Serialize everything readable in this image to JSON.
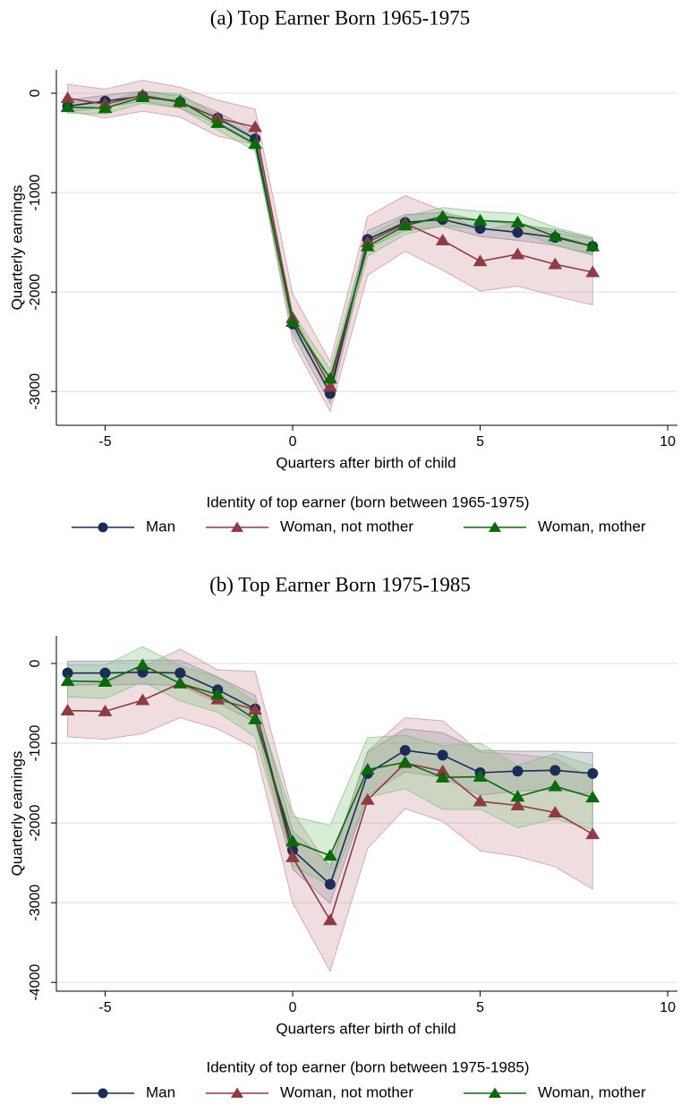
{
  "chart_data": [
    {
      "type": "line",
      "title": "(a) Top Earner Born 1965-1975",
      "xlabel": "Quarters after birth of child",
      "ylabel": "Quarterly earnings",
      "legend_title": "Identity of top earner (born between 1965-1975)",
      "grid": true,
      "xlim": [
        -6.3,
        10.26
      ],
      "xticks": [
        -5,
        0,
        5,
        10
      ],
      "ylim": [
        -3340,
        235
      ],
      "yticks": [
        0,
        -1000,
        -2000,
        -3000
      ],
      "x": [
        -6,
        -5,
        -4,
        -3,
        -2,
        -1,
        0,
        1,
        2,
        3,
        4,
        5,
        6,
        7,
        8
      ],
      "series": [
        {
          "name": "Man",
          "color": "#1b2c57",
          "band_color": "#7d8aa3",
          "marker": "circle",
          "values": [
            -130,
            -80,
            -30,
            -90,
            -250,
            -460,
            -2320,
            -3020,
            -1470,
            -1300,
            -1270,
            -1360,
            -1400,
            -1450,
            -1540
          ],
          "lower": [
            -190,
            -140,
            -80,
            -150,
            -310,
            -530,
            -2420,
            -3120,
            -1560,
            -1380,
            -1340,
            -1440,
            -1480,
            -1530,
            -1620
          ],
          "upper": [
            -70,
            -20,
            20,
            -30,
            -190,
            -390,
            -2220,
            -2920,
            -1380,
            -1220,
            -1200,
            -1280,
            -1320,
            -1370,
            -1460
          ]
        },
        {
          "name": "Woman, not mother",
          "color": "#903a42",
          "band_color": "#c98f97",
          "marker": "triangle",
          "values": [
            -50,
            -110,
            -20,
            -90,
            -250,
            -340,
            -2260,
            -2950,
            -1500,
            -1310,
            -1480,
            -1690,
            -1620,
            -1720,
            -1800
          ],
          "lower": [
            -180,
            -250,
            -180,
            -240,
            -430,
            -520,
            -2500,
            -3200,
            -1830,
            -1590,
            -1780,
            -1990,
            -1940,
            -2040,
            -2130
          ],
          "upper": [
            90,
            40,
            130,
            60,
            -70,
            -160,
            -2020,
            -2700,
            -1240,
            -1030,
            -1180,
            -1390,
            -1300,
            -1400,
            -1470
          ]
        },
        {
          "name": "Woman, mother",
          "color": "#0a6a0a",
          "band_color": "#7fbf7f",
          "marker": "triangle",
          "values": [
            -140,
            -150,
            -40,
            -80,
            -300,
            -510,
            -2300,
            -2870,
            -1540,
            -1330,
            -1240,
            -1280,
            -1300,
            -1440,
            -1540
          ],
          "lower": [
            -200,
            -210,
            -100,
            -150,
            -370,
            -580,
            -2390,
            -2960,
            -1640,
            -1420,
            -1330,
            -1370,
            -1390,
            -1530,
            -1630
          ],
          "upper": [
            -80,
            -90,
            20,
            -10,
            -230,
            -440,
            -2210,
            -2780,
            -1440,
            -1240,
            -1150,
            -1190,
            -1210,
            -1350,
            -1450
          ]
        }
      ]
    },
    {
      "type": "line",
      "title": "(b) Top Earner Born 1975-1985",
      "xlabel": "Quarters after birth of child",
      "ylabel": "Quarterly earnings",
      "legend_title": "Identity of top earner (born between 1975-1985)",
      "grid": true,
      "xlim": [
        -6.3,
        10.26
      ],
      "xticks": [
        -5,
        0,
        5,
        10
      ],
      "ylim": [
        -4110,
        348
      ],
      "yticks": [
        0,
        -1000,
        -2000,
        -3000,
        -4000
      ],
      "x": [
        -6,
        -5,
        -4,
        -3,
        -2,
        -1,
        0,
        1,
        2,
        3,
        4,
        5,
        6,
        7,
        8
      ],
      "series": [
        {
          "name": "Man",
          "color": "#1b2c57",
          "band_color": "#7d8aa3",
          "marker": "circle",
          "values": [
            -120,
            -120,
            -110,
            -120,
            -330,
            -570,
            -2340,
            -2770,
            -1380,
            -1090,
            -1150,
            -1370,
            -1350,
            -1340,
            -1380
          ],
          "lower": [
            -270,
            -270,
            -260,
            -280,
            -490,
            -740,
            -2580,
            -3010,
            -1650,
            -1360,
            -1430,
            -1650,
            -1600,
            -1580,
            -1640
          ],
          "upper": [
            30,
            30,
            40,
            40,
            -170,
            -400,
            -2100,
            -2530,
            -1110,
            -820,
            -870,
            -1090,
            -1100,
            -1100,
            -1120
          ]
        },
        {
          "name": "Woman, not mother",
          "color": "#903a42",
          "band_color": "#c98f97",
          "marker": "triangle",
          "values": [
            -590,
            -600,
            -460,
            -250,
            -450,
            -580,
            -2430,
            -3220,
            -1710,
            -1250,
            -1350,
            -1730,
            -1780,
            -1870,
            -2140
          ],
          "lower": [
            -920,
            -950,
            -880,
            -680,
            -820,
            -1060,
            -3000,
            -3860,
            -2320,
            -1820,
            -1980,
            -2350,
            -2420,
            -2550,
            -2830
          ],
          "upper": [
            -260,
            -250,
            -40,
            180,
            -80,
            -100,
            -1860,
            -2580,
            -1100,
            -680,
            -720,
            -1110,
            -1140,
            -1190,
            -1450
          ]
        },
        {
          "name": "Woman, mother",
          "color": "#0a6a0a",
          "band_color": "#7fbf7f",
          "marker": "triangle",
          "values": [
            -220,
            -230,
            -20,
            -250,
            -390,
            -700,
            -2230,
            -2410,
            -1330,
            -1240,
            -1430,
            -1420,
            -1670,
            -1540,
            -1680
          ],
          "lower": [
            -420,
            -440,
            -230,
            -470,
            -610,
            -920,
            -2540,
            -2790,
            -1680,
            -1570,
            -1830,
            -1830,
            -2060,
            -1950,
            -2080
          ],
          "upper": [
            -20,
            -20,
            210,
            -30,
            -170,
            -480,
            -1920,
            -2030,
            -930,
            -900,
            -1030,
            -1000,
            -1280,
            -1130,
            -1280
          ]
        }
      ]
    }
  ]
}
